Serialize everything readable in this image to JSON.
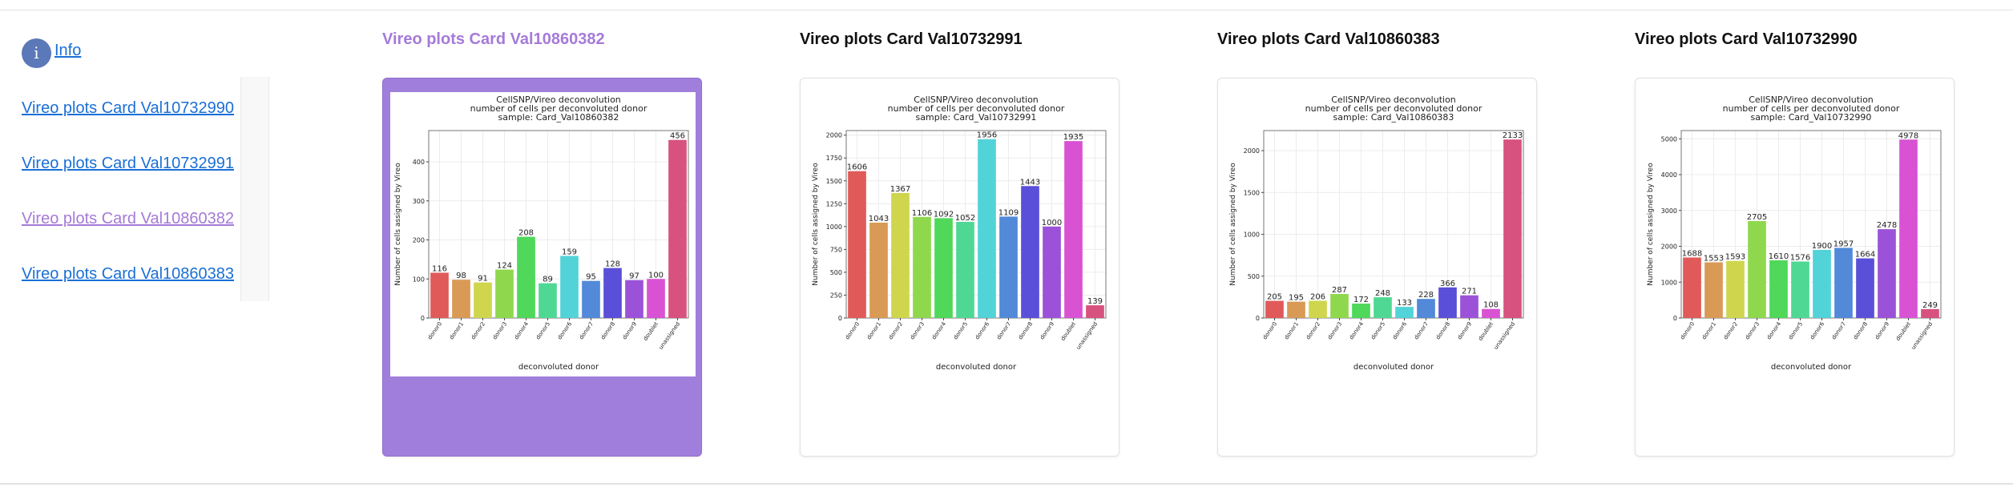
{
  "sidebar": {
    "info": "Info",
    "links": [
      {
        "label": "Vireo plots Card Val10732990",
        "selected": false
      },
      {
        "label": "Vireo plots Card Val10732991",
        "selected": false
      },
      {
        "label": "Vireo plots Card Val10860382",
        "selected": true
      },
      {
        "label": "Vireo plots Card Val10860383",
        "selected": false
      }
    ]
  },
  "cards": [
    {
      "title": "Vireo plots Card Val10860382",
      "selected": true,
      "chart": {
        "type": "bar",
        "title": [
          "CellSNP/Vireo deconvolution",
          "number of cells per deconvoluted donor",
          "sample: Card_Val10860382"
        ],
        "ylabel": "Number of cells assigned by Vireo",
        "xlabel": "deconvoluted donor",
        "grid": true,
        "categories": [
          "donor0",
          "donor1",
          "donor2",
          "donor3",
          "donor4",
          "donor5",
          "donor6",
          "donor7",
          "donor8",
          "donor9",
          "doublet",
          "unassigned"
        ],
        "values": [
          116,
          98,
          91,
          124,
          208,
          89,
          159,
          95,
          128,
          97,
          100,
          456
        ],
        "ylim": [
          0,
          480
        ],
        "yticks": [
          0,
          100,
          200,
          300,
          400
        ],
        "colors": [
          "#e05a5a",
          "#d99a55",
          "#cfd64e",
          "#8fd84e",
          "#4fd85a",
          "#4fd894",
          "#52d3d8",
          "#5289d8",
          "#5a4fd8",
          "#9b52d8",
          "#d852d3",
          "#d8527f"
        ]
      }
    },
    {
      "title": "Vireo plots Card Val10732991",
      "selected": false,
      "chart": {
        "type": "bar",
        "title": [
          "CellSNP/Vireo deconvolution",
          "number of cells per deconvoluted donor",
          "sample: Card_Val10732991"
        ],
        "ylabel": "Number of cells assigned by Vireo",
        "xlabel": "deconvoluted donor",
        "grid": true,
        "categories": [
          "donor0",
          "donor1",
          "donor2",
          "donor3",
          "donor4",
          "donor5",
          "donor6",
          "donor7",
          "donor8",
          "donor9",
          "doublet",
          "unassigned"
        ],
        "values": [
          1606,
          1043,
          1367,
          1106,
          1092,
          1052,
          1956,
          1109,
          1443,
          1000,
          1935,
          139
        ],
        "ylim": [
          0,
          2050
        ],
        "yticks": [
          0,
          250,
          500,
          750,
          1000,
          1250,
          1500,
          1750,
          2000
        ],
        "colors": [
          "#e05a5a",
          "#d99a55",
          "#cfd64e",
          "#8fd84e",
          "#4fd85a",
          "#4fd894",
          "#52d3d8",
          "#5289d8",
          "#5a4fd8",
          "#9b52d8",
          "#d852d3",
          "#d8527f"
        ]
      }
    },
    {
      "title": "Vireo plots Card Val10860383",
      "selected": false,
      "chart": {
        "type": "bar",
        "title": [
          "CellSNP/Vireo deconvolution",
          "number of cells per deconvoluted donor",
          "sample: Card_Val10860383"
        ],
        "ylabel": "Number of cells assigned by Vireo",
        "xlabel": "deconvoluted donor",
        "grid": true,
        "categories": [
          "donor0",
          "donor1",
          "donor2",
          "donor3",
          "donor4",
          "donor5",
          "donor6",
          "donor7",
          "donor8",
          "donor9",
          "doublet",
          "unassigned"
        ],
        "values": [
          205,
          195,
          206,
          287,
          172,
          248,
          133,
          228,
          366,
          271,
          108,
          2133
        ],
        "ylim": [
          0,
          2240
        ],
        "yticks": [
          0,
          500,
          1000,
          1500,
          2000
        ],
        "colors": [
          "#e05a5a",
          "#d99a55",
          "#cfd64e",
          "#8fd84e",
          "#4fd85a",
          "#4fd894",
          "#52d3d8",
          "#5289d8",
          "#5a4fd8",
          "#9b52d8",
          "#d852d3",
          "#d8527f"
        ]
      }
    },
    {
      "title": "Vireo plots Card Val10732990",
      "selected": false,
      "chart": {
        "type": "bar",
        "title": [
          "CellSNP/Vireo deconvolution",
          "number of cells per deconvoluted donor",
          "sample: Card_Val10732990"
        ],
        "ylabel": "Number of cells assigned by Vireo",
        "xlabel": "deconvoluted donor",
        "grid": true,
        "categories": [
          "donor0",
          "donor1",
          "donor2",
          "donor3",
          "donor4",
          "donor5",
          "donor6",
          "donor7",
          "donor8",
          "donor9",
          "doublet",
          "unassigned"
        ],
        "values": [
          1688,
          1553,
          1593,
          2705,
          1610,
          1576,
          1900,
          1957,
          1664,
          2478,
          4978,
          249
        ],
        "ylim": [
          0,
          5230
        ],
        "yticks": [
          0,
          1000,
          2000,
          3000,
          4000,
          5000
        ],
        "colors": [
          "#e05a5a",
          "#d99a55",
          "#cfd64e",
          "#8fd84e",
          "#4fd85a",
          "#4fd894",
          "#52d3d8",
          "#5289d8",
          "#5a4fd8",
          "#9b52d8",
          "#d852d3",
          "#d8527f"
        ]
      }
    }
  ]
}
